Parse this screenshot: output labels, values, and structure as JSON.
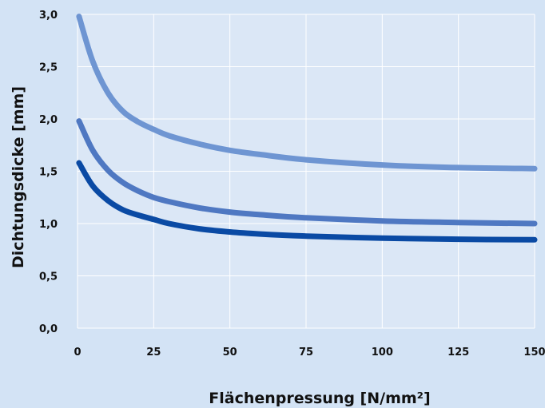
{
  "chart_data": {
    "type": "line",
    "title": "",
    "xlabel": "Flächenpressung [N/mm²]",
    "ylabel": "Dichtungsdicke [mm]",
    "xlim": [
      0,
      150
    ],
    "ylim": [
      0,
      3.0
    ],
    "x_ticks": [
      0,
      25,
      50,
      75,
      100,
      125,
      150
    ],
    "x_tick_labels": [
      "0",
      "25",
      "50",
      "75",
      "100",
      "125",
      "150"
    ],
    "y_ticks": [
      0,
      0.5,
      1.0,
      1.5,
      2.0,
      2.5,
      3.0
    ],
    "y_tick_labels": [
      "0,0",
      "0,5",
      "1,0",
      "1,5",
      "2,0",
      "2,5",
      "3,0"
    ],
    "grid": true,
    "legend": "none",
    "colors": {
      "background": "#d3e3f5",
      "plot_background": "#dbe7f6",
      "grid": "#ffffff"
    },
    "series": [
      {
        "color": "#6e95d2",
        "x": [
          0.5,
          5,
          10,
          15,
          20,
          25,
          30,
          40,
          50,
          60,
          75,
          100,
          125,
          150
        ],
        "y": [
          2.98,
          2.55,
          2.25,
          2.07,
          1.97,
          1.9,
          1.84,
          1.76,
          1.7,
          1.66,
          1.61,
          1.56,
          1.535,
          1.525
        ]
      },
      {
        "color": "#4f78c2",
        "x": [
          0.5,
          5,
          10,
          15,
          20,
          25,
          30,
          40,
          50,
          60,
          75,
          100,
          125,
          150
        ],
        "y": [
          1.98,
          1.7,
          1.51,
          1.39,
          1.31,
          1.25,
          1.21,
          1.15,
          1.11,
          1.085,
          1.055,
          1.025,
          1.01,
          1.0
        ]
      },
      {
        "color": "#0a4aa4",
        "x": [
          0.5,
          5,
          10,
          15,
          20,
          25,
          30,
          40,
          50,
          60,
          75,
          100,
          125,
          150
        ],
        "y": [
          1.58,
          1.36,
          1.22,
          1.13,
          1.08,
          1.04,
          1.0,
          0.95,
          0.92,
          0.9,
          0.88,
          0.86,
          0.85,
          0.845
        ]
      }
    ]
  }
}
